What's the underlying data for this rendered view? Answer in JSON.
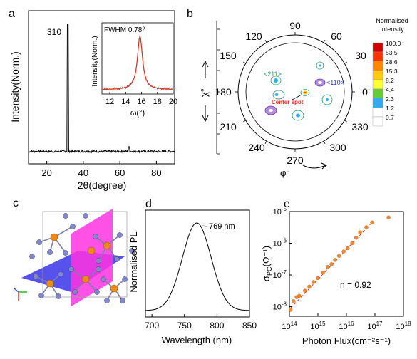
{
  "panels": {
    "a": {
      "letter": "a",
      "peak_label": "310",
      "ylabel": "Intensity(Norm.)",
      "xlabel": "2θ(degree)",
      "xticks": [
        "20",
        "40",
        "60",
        "80"
      ],
      "inset": {
        "annotation": "FWHM 0.78⁰",
        "ylabel": "Intensity(Norm.)",
        "xlabel": "ω(°)",
        "xticks": [
          "12",
          "14",
          "16",
          "18",
          "20"
        ]
      }
    },
    "b": {
      "letter": "b",
      "angle_labels": {
        "top": "90",
        "left": "180",
        "right": "0",
        "bottom": "270",
        "ul": "120",
        "ur": "60",
        "ll": "240",
        "lr": "300",
        "l1": "150",
        "r1": "30",
        "l2": "210",
        "r2": "330"
      },
      "chi_label": "χ°",
      "chi_ticks": [
        "0",
        "30",
        "60",
        "90",
        "30",
        "60",
        "90"
      ],
      "phi_label": "φ°",
      "label_211": "<211>",
      "label_110": "<110>",
      "center_label": "Center spot",
      "colorbar_title": [
        "Normalised",
        "Intensity"
      ],
      "colorbar": [
        {
          "value": "100.0",
          "color": "#d40000"
        },
        {
          "value": "53.5",
          "color": "#ff3300"
        },
        {
          "value": "28.6",
          "color": "#ff8800"
        },
        {
          "value": "15.3",
          "color": "#ffcc00"
        },
        {
          "value": "8.2",
          "color": "#ffff33"
        },
        {
          "value": "4.4",
          "color": "#66cc33"
        },
        {
          "value": "2.3",
          "color": "#33aaee"
        },
        {
          "value": "1.2",
          "color": "#ffffff"
        },
        {
          "value": "0.7",
          "color": "#ffffff"
        }
      ]
    },
    "c": {
      "letter": "c"
    },
    "d": {
      "letter": "d",
      "ylabel": "Normalised PL",
      "xlabel": "Wavelength (nm)",
      "peak_label": "769 nm",
      "xticks": [
        "700",
        "750",
        "800",
        "850"
      ]
    },
    "e": {
      "letter": "e",
      "ylabel": "σPC(Ω⁻¹)",
      "xlabel": "Photon Flux(cm⁻²s⁻¹)",
      "fit_label": "n = 0.92",
      "xtick_exps": [
        "14",
        "15",
        "16",
        "17",
        "18"
      ],
      "ytick_exps": [
        "-8",
        "-7",
        "-6",
        "-5"
      ]
    }
  },
  "chart_data": [
    {
      "type": "line",
      "panel": "a",
      "xlabel": "2θ(degree)",
      "ylabel": "Intensity(Norm.)",
      "xlim": [
        10,
        90
      ],
      "peaks": [
        {
          "x": 31.5,
          "y": 1.0,
          "label": "310"
        }
      ],
      "background_level": 0.04
    },
    {
      "type": "line",
      "panel": "a-inset",
      "xlabel": "ω(°)",
      "ylabel": "Intensity(Norm.)",
      "xlim": [
        11,
        20
      ],
      "peak_center": 15.8,
      "fwhm": 0.78
    },
    {
      "type": "scatter",
      "panel": "b",
      "angular_axis": "φ°",
      "radial_axis": "χ°",
      "spots": [
        {
          "phi": 0,
          "chi": 0,
          "label": "Center spot"
        },
        {
          "phi": 30,
          "chi": 35,
          "label": "<110>"
        },
        {
          "phi": 150,
          "chi": 37,
          "label": "<211>"
        },
        {
          "phi": 200,
          "chi": 50,
          "label": "<211>"
        },
        {
          "phi": 290,
          "chi": 40,
          "label": "<211>"
        },
        {
          "phi": 60,
          "chi": 58,
          "label": "<211>"
        },
        {
          "phi": 340,
          "chi": 30,
          "label": "<211>"
        }
      ]
    },
    {
      "type": "line",
      "panel": "d",
      "xlabel": "Wavelength (nm)",
      "ylabel": "Normalised PL",
      "xlim": [
        690,
        850
      ],
      "peak": 769,
      "series": [
        {
          "x": [
            690,
            700,
            720,
            740,
            750,
            760,
            765,
            769,
            775,
            780,
            790,
            800,
            820,
            850
          ],
          "y": [
            0.02,
            0.03,
            0.08,
            0.3,
            0.55,
            0.88,
            0.97,
            1.0,
            0.95,
            0.82,
            0.5,
            0.24,
            0.06,
            0.02
          ]
        }
      ]
    },
    {
      "type": "scatter",
      "panel": "e",
      "xlabel": "Photon Flux(cm⁻²s⁻¹)",
      "ylabel": "σPC(Ω⁻¹)",
      "xscale": "log",
      "yscale": "log",
      "xlim": [
        100000000000000.0,
        1e+18
      ],
      "ylim": [
        5e-09,
        1e-05
      ],
      "fit_exponent": 0.92,
      "points": [
        [
          110000000000000.0,
          8e-09
        ],
        [
          140000000000000.0,
          1.5e-08
        ],
        [
          180000000000000.0,
          2e-08
        ],
        [
          220000000000000.0,
          2.2e-08
        ],
        [
          350000000000000.0,
          3.2e-08
        ],
        [
          500000000000000.0,
          4.3e-08
        ],
        [
          700000000000000.0,
          6e-08
        ],
        [
          1000000000000000.0,
          8e-08
        ],
        [
          1500000000000000.0,
          1.2e-07
        ],
        [
          2200000000000000.0,
          1.8e-07
        ],
        [
          3000000000000000.0,
          2.2e-07
        ],
        [
          4000000000000000.0,
          3e-07
        ],
        [
          5500000000000000.0,
          4e-07
        ],
        [
          8000000000000000.0,
          5.5e-07
        ],
        [
          1.1e+16,
          7e-07
        ],
        [
          1.6e+16,
          1e-06
        ],
        [
          2.2e+16,
          1.5e-06
        ],
        [
          3e+16,
          2.2e-06
        ],
        [
          5e+16,
          3.2e-06
        ],
        [
          8e+16,
          4.5e-06
        ],
        [
          3e+17,
          6.5e-06
        ]
      ]
    }
  ]
}
